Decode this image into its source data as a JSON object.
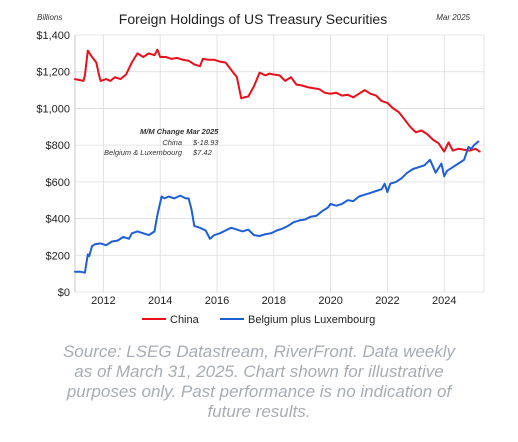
{
  "chart_data": {
    "type": "line",
    "title": "Foreign Holdings of US Treasury Securities",
    "ylabel": "Billions",
    "date_label": "Mar 2025",
    "ylim": [
      0,
      1400
    ],
    "xlim": [
      2011.0,
      2025.4
    ],
    "yticks": [
      0,
      200,
      400,
      600,
      800,
      1000,
      1200,
      1400
    ],
    "ytick_labels": [
      "$0",
      "$200",
      "$400",
      "$600",
      "$800",
      "$1,000",
      "$1,200",
      "$1,400"
    ],
    "xticks": [
      2012,
      2014,
      2016,
      2018,
      2020,
      2022,
      2024
    ],
    "xtick_labels": [
      "2012",
      "2014",
      "2016",
      "2018",
      "2020",
      "2022",
      "2024"
    ],
    "grid": true,
    "legend_position": "bottom",
    "colors": {
      "china": "#e8101a",
      "belgium": "#1f5fd6"
    },
    "series": [
      {
        "name": "China",
        "x": [
          2011.0,
          2011.3,
          2011.35,
          2011.45,
          2011.6,
          2011.75,
          2011.85,
          2011.9,
          2012.1,
          2012.25,
          2012.4,
          2012.6,
          2012.8,
          2013.0,
          2013.2,
          2013.4,
          2013.6,
          2013.8,
          2013.9,
          2014.0,
          2014.2,
          2014.4,
          2014.6,
          2014.8,
          2015.0,
          2015.2,
          2015.4,
          2015.5,
          2015.7,
          2015.9,
          2016.1,
          2016.3,
          2016.5,
          2016.7,
          2016.85,
          2016.95,
          2017.1,
          2017.3,
          2017.5,
          2017.7,
          2017.85,
          2018.0,
          2018.2,
          2018.4,
          2018.6,
          2018.8,
          2019.0,
          2019.2,
          2019.4,
          2019.6,
          2019.8,
          2020.0,
          2020.2,
          2020.4,
          2020.6,
          2020.8,
          2021.0,
          2021.2,
          2021.4,
          2021.6,
          2021.8,
          2022.0,
          2022.2,
          2022.4,
          2022.6,
          2022.8,
          2023.0,
          2023.2,
          2023.4,
          2023.6,
          2023.8,
          2024.0,
          2024.15,
          2024.3,
          2024.5,
          2024.7,
          2024.9,
          2025.1,
          2025.25
        ],
        "values": [
          1160,
          1150,
          1180,
          1315,
          1280,
          1250,
          1180,
          1150,
          1160,
          1150,
          1170,
          1160,
          1185,
          1250,
          1300,
          1280,
          1300,
          1290,
          1320,
          1280,
          1280,
          1270,
          1275,
          1265,
          1260,
          1240,
          1230,
          1270,
          1265,
          1265,
          1255,
          1250,
          1210,
          1170,
          1055,
          1060,
          1065,
          1120,
          1195,
          1180,
          1190,
          1185,
          1180,
          1150,
          1170,
          1130,
          1125,
          1115,
          1110,
          1105,
          1085,
          1080,
          1085,
          1070,
          1075,
          1060,
          1080,
          1100,
          1080,
          1070,
          1040,
          1030,
          1000,
          980,
          940,
          900,
          870,
          880,
          860,
          830,
          810,
          765,
          815,
          770,
          780,
          775,
          770,
          780,
          765
        ]
      },
      {
        "name": "Belgium plus Luxembourg",
        "x": [
          2011.0,
          2011.2,
          2011.35,
          2011.45,
          2011.5,
          2011.6,
          2011.7,
          2011.9,
          2012.1,
          2012.3,
          2012.5,
          2012.7,
          2012.9,
          2013.0,
          2013.2,
          2013.4,
          2013.6,
          2013.8,
          2013.9,
          2014.05,
          2014.15,
          2014.3,
          2014.5,
          2014.7,
          2014.9,
          2015.0,
          2015.1,
          2015.2,
          2015.4,
          2015.6,
          2015.75,
          2015.9,
          2016.1,
          2016.3,
          2016.5,
          2016.7,
          2016.9,
          2017.1,
          2017.3,
          2017.5,
          2017.7,
          2017.9,
          2018.1,
          2018.3,
          2018.5,
          2018.7,
          2018.9,
          2019.1,
          2019.3,
          2019.5,
          2019.7,
          2019.9,
          2020.0,
          2020.2,
          2020.4,
          2020.6,
          2020.8,
          2021.0,
          2021.2,
          2021.4,
          2021.6,
          2021.8,
          2021.9,
          2022.0,
          2022.1,
          2022.3,
          2022.5,
          2022.7,
          2022.9,
          2023.1,
          2023.3,
          2023.5,
          2023.7,
          2023.9,
          2024.0,
          2024.1,
          2024.3,
          2024.5,
          2024.7,
          2024.85,
          2024.95,
          2025.05,
          2025.2
        ],
        "values": [
          110,
          110,
          105,
          205,
          195,
          250,
          260,
          265,
          255,
          275,
          280,
          300,
          290,
          320,
          330,
          320,
          310,
          330,
          420,
          520,
          510,
          520,
          510,
          525,
          510,
          510,
          450,
          360,
          350,
          335,
          290,
          310,
          320,
          335,
          350,
          340,
          330,
          340,
          310,
          305,
          315,
          320,
          335,
          345,
          360,
          380,
          390,
          395,
          410,
          415,
          440,
          460,
          480,
          470,
          480,
          500,
          495,
          520,
          530,
          540,
          550,
          560,
          590,
          545,
          590,
          600,
          620,
          650,
          670,
          680,
          690,
          720,
          650,
          700,
          630,
          660,
          680,
          700,
          720,
          790,
          780,
          800,
          820
        ]
      }
    ],
    "annotation": {
      "title": "M/M Change  Mar 2025",
      "rows": [
        {
          "label": "China",
          "value": "$-18.93"
        },
        {
          "label": "Belgium & Luxembourg",
          "value": "$7.42"
        }
      ]
    }
  },
  "source": {
    "lines": [
      "Source: LSEG Datastream, RiverFront. Data weekly",
      "as of March 31, 2025. Chart shown for illustrative",
      "purposes only. Past performance is no indication of",
      "future results."
    ]
  }
}
